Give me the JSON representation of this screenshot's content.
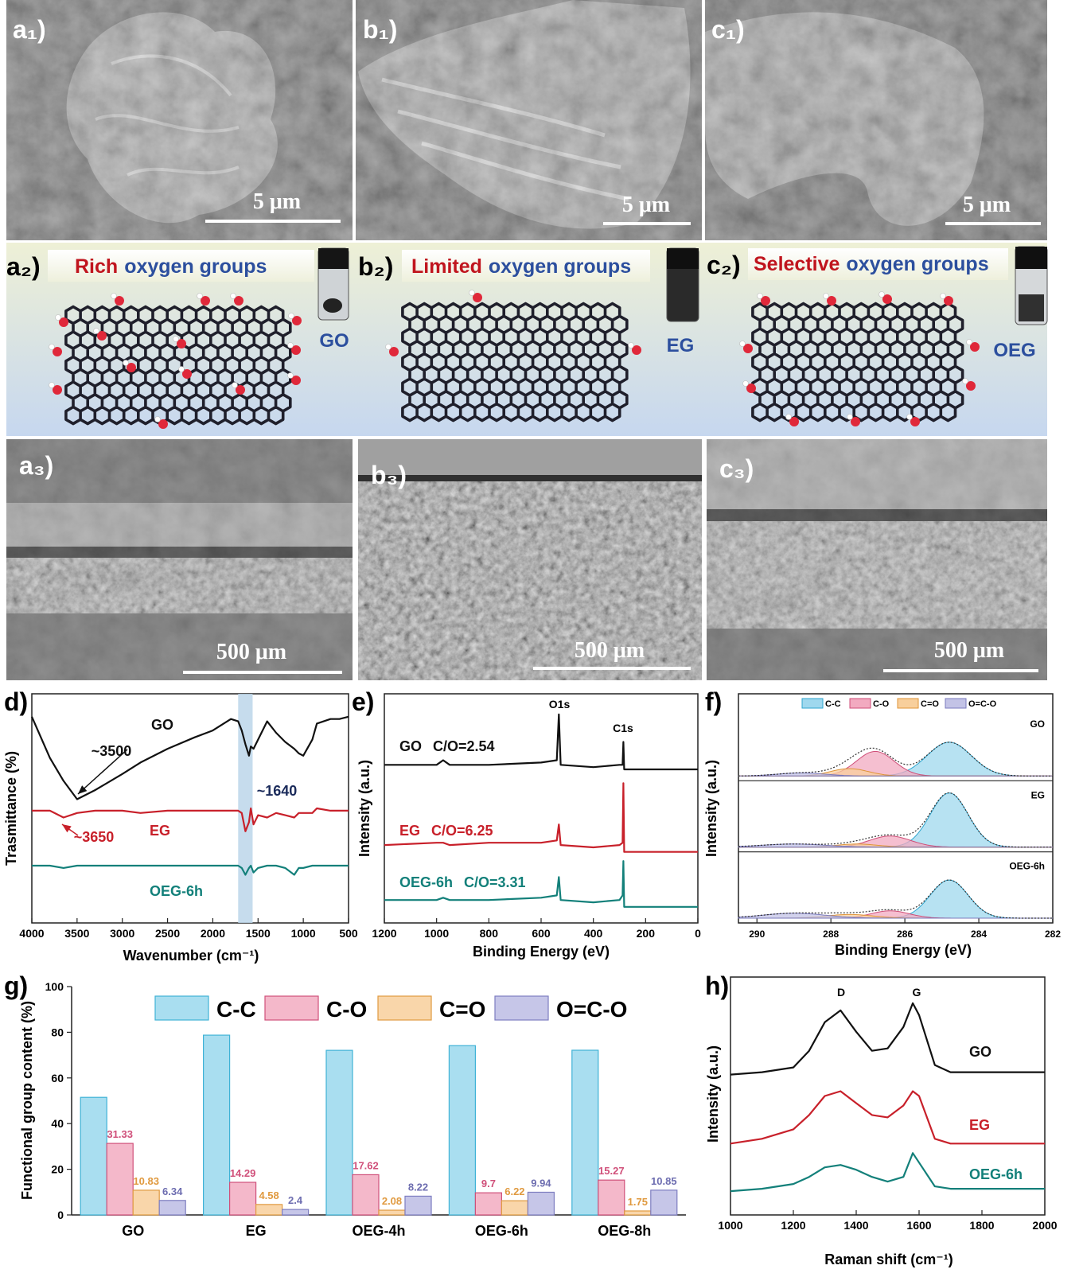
{
  "sem_panels": [
    {
      "label": "a₁)",
      "scale_bar": "5 μm"
    },
    {
      "label": "b₁)",
      "scale_bar": "5 μm"
    },
    {
      "label": "c₁)",
      "scale_bar": "5 μm"
    }
  ],
  "schematics": [
    {
      "label": "a₂)",
      "title_emphasis": "Rich",
      "title_rest": "oxygen groups",
      "vial_label": "GO"
    },
    {
      "label": "b₂)",
      "title_emphasis": "Limited",
      "title_rest": "oxygen groups",
      "vial_label": "EG"
    },
    {
      "label": "c₂)",
      "title_emphasis": "Selective",
      "title_rest": "oxygen groups",
      "vial_label": "OEG"
    }
  ],
  "cross_sections": [
    {
      "label": "a₃)",
      "scale_bar": "500 μm"
    },
    {
      "label": "b₃)",
      "scale_bar": "500 μm"
    },
    {
      "label": "c₃)",
      "scale_bar": "500 μm"
    }
  ],
  "chart_data": [
    {
      "type": "line",
      "label": "d)",
      "xlabel": "Wavenumber (cm⁻¹)",
      "ylabel": "Trasmittance (%)",
      "x": [
        4000,
        3800,
        3650,
        3500,
        3300,
        3000,
        2800,
        2500,
        2200,
        2000,
        1800,
        1720,
        1680,
        1640,
        1600,
        1580,
        1550,
        1500,
        1400,
        1300,
        1200,
        1100,
        1050,
        1000,
        900,
        850,
        700,
        600,
        500
      ],
      "xlim": [
        4000,
        500
      ],
      "xticks": [
        4000,
        3500,
        3000,
        2500,
        2000,
        1500,
        1000,
        500
      ],
      "ylim": [
        0,
        100
      ],
      "band": [
        1720,
        1560
      ],
      "band_color": "#bcd6ea",
      "series": [
        {
          "name": "GO",
          "color": "#111111",
          "values": [
            90,
            72,
            62,
            54,
            58,
            65,
            70,
            76,
            81,
            84,
            89,
            88,
            84,
            78,
            73,
            77,
            76,
            80,
            88,
            83,
            79,
            76,
            74,
            73,
            80,
            87,
            89,
            89,
            90
          ]
        },
        {
          "name": "EG",
          "color": "#c8202a",
          "values": [
            49,
            49,
            46,
            48,
            49,
            49,
            48,
            49,
            49,
            49,
            49,
            49,
            48,
            40,
            44,
            50,
            43,
            47,
            46,
            48,
            47,
            46,
            48,
            48,
            48,
            50,
            49,
            49,
            49
          ]
        },
        {
          "name": "OEG-6h",
          "color": "#13807a",
          "values": [
            25,
            25,
            24,
            25,
            25,
            25,
            25,
            25,
            25,
            25,
            25,
            25,
            24,
            21,
            24,
            25,
            22,
            24,
            25,
            25,
            24,
            21,
            24,
            24,
            25,
            25,
            25,
            25,
            25
          ]
        }
      ],
      "annotations": [
        {
          "text": "~3500",
          "color": "#111111"
        },
        {
          "text": "~1640",
          "color": "#1a2a5a"
        },
        {
          "text": "~3650",
          "color": "#c8202a"
        }
      ]
    },
    {
      "type": "line",
      "label": "e)",
      "xlabel": "Binding Energy (eV)",
      "ylabel": "Intensity (a.u.)",
      "x": [
        1200,
        1000,
        975,
        950,
        800,
        600,
        540,
        532,
        525,
        400,
        300,
        288,
        285,
        282,
        200,
        0
      ],
      "xlim": [
        1200,
        0
      ],
      "xticks": [
        1200,
        1000,
        800,
        600,
        400,
        200,
        0
      ],
      "ylim": [
        0,
        100
      ],
      "peak_labels": [
        "O1s",
        "C1s"
      ],
      "series": [
        {
          "name": "GO",
          "ratio": "C/O=2.54",
          "color": "#111111",
          "values": [
            69,
            69,
            71,
            69,
            69,
            70,
            71,
            91,
            69,
            68,
            69,
            69,
            79,
            67,
            67,
            67
          ]
        },
        {
          "name": "EG",
          "ratio": "C/O=6.25",
          "color": "#c8202a",
          "values": [
            34,
            35,
            35,
            34,
            35,
            35,
            36,
            43,
            34,
            33,
            34,
            35,
            61,
            31,
            31,
            31
          ]
        },
        {
          "name": "OEG-6h",
          "ratio": "C/O=3.31",
          "color": "#13807a",
          "values": [
            10,
            10,
            11,
            10,
            10,
            11,
            12,
            20,
            10,
            9,
            10,
            12,
            27,
            7,
            7,
            7
          ]
        }
      ]
    },
    {
      "type": "area",
      "label": "f)",
      "xlabel": "Binding Energy (eV)",
      "ylabel": "Intensity (a.u.)",
      "xlim": [
        290.5,
        282
      ],
      "xticks": [
        290,
        288,
        286,
        284,
        282
      ],
      "ylim": [
        0,
        100
      ],
      "series": [
        {
          "name": "C-C",
          "color": "#9fd8ee",
          "edge": "#2fa6cf"
        },
        {
          "name": "C-O",
          "color": "#f2aac0",
          "edge": "#cf4e78"
        },
        {
          "name": "C=O",
          "color": "#f8cf9c",
          "edge": "#df9438"
        },
        {
          "name": "O=C-O",
          "color": "#c3c3e6",
          "edge": "#7b7bbd"
        }
      ],
      "samples": [
        {
          "name": "GO",
          "components": [
            {
              "center": 284.8,
              "height": 55,
              "fwhm": 1.4
            },
            {
              "center": 286.8,
              "height": 40,
              "fwhm": 1.2
            },
            {
              "center": 287.5,
              "height": 12,
              "fwhm": 1.2
            },
            {
              "center": 288.8,
              "height": 5,
              "fwhm": 1.5
            }
          ]
        },
        {
          "name": "EG",
          "components": [
            {
              "center": 284.8,
              "height": 88,
              "fwhm": 1.2
            },
            {
              "center": 286.4,
              "height": 18,
              "fwhm": 1.3
            },
            {
              "center": 287.3,
              "height": 5,
              "fwhm": 1.3
            },
            {
              "center": 289,
              "height": 5,
              "fwhm": 2
            }
          ]
        },
        {
          "name": "OEG-6h",
          "components": [
            {
              "center": 284.8,
              "height": 62,
              "fwhm": 1.2
            },
            {
              "center": 286.4,
              "height": 12,
              "fwhm": 1.2
            },
            {
              "center": 287.5,
              "height": 6,
              "fwhm": 1.5
            },
            {
              "center": 289,
              "height": 8,
              "fwhm": 2
            }
          ]
        }
      ]
    },
    {
      "type": "bar",
      "label": "g)",
      "ylabel": "Functional group content (%)",
      "categories": [
        "GO",
        "EG",
        "OEG-4h",
        "OEG-6h",
        "OEG-8h"
      ],
      "ylim": [
        0,
        100
      ],
      "yticks": [
        0,
        20,
        40,
        60,
        80,
        100
      ],
      "series": [
        {
          "name": "C-C",
          "color": "#a9def0",
          "edge": "#3fb2d6",
          "label_color": "#3fb2d6",
          "show_labels": false,
          "values": [
            51.5,
            78.73,
            72.08,
            74.14,
            72.13
          ]
        },
        {
          "name": "C-O",
          "color": "#f4b8ca",
          "edge": "#d0507a",
          "label_color": "#d0507a",
          "show_labels": true,
          "values": [
            31.33,
            14.29,
            17.62,
            9.7,
            15.27
          ]
        },
        {
          "name": "C=O",
          "color": "#f9d6aa",
          "edge": "#e09a40",
          "label_color": "#e09a40",
          "show_labels": true,
          "values": [
            10.83,
            4.58,
            2.08,
            6.22,
            1.75
          ]
        },
        {
          "name": "O=C-O",
          "color": "#c6c6e8",
          "edge": "#7d7dc0",
          "label_color": "#6d6db0",
          "show_labels": true,
          "values": [
            6.34,
            2.4,
            8.22,
            9.94,
            10.85
          ]
        }
      ]
    },
    {
      "type": "line",
      "label": "h)",
      "xlabel": "Raman shift (cm⁻¹)",
      "ylabel": "Intensity (a.u.)",
      "x": [
        1000,
        1100,
        1200,
        1250,
        1300,
        1350,
        1400,
        1450,
        1500,
        1550,
        1580,
        1600,
        1650,
        1700,
        1800,
        1900,
        2000
      ],
      "xlim": [
        1000,
        2000
      ],
      "xticks": [
        1000,
        1200,
        1400,
        1600,
        1800,
        2000
      ],
      "ylim": [
        0,
        100
      ],
      "peak_labels": [
        "D",
        "G"
      ],
      "series": [
        {
          "name": "GO",
          "color": "#111111",
          "values": [
            59,
            60,
            62,
            69,
            81,
            86,
            77,
            69,
            70,
            79,
            89,
            84,
            63,
            60,
            60,
            60,
            60
          ]
        },
        {
          "name": "EG",
          "color": "#c8202a",
          "values": [
            30,
            32,
            36,
            42,
            50,
            52,
            47,
            42,
            41,
            46,
            52,
            50,
            32,
            30,
            30,
            30,
            30
          ]
        },
        {
          "name": "OEG-6h",
          "color": "#13807a",
          "values": [
            10,
            11,
            13,
            16,
            20,
            21,
            19,
            16,
            14,
            16,
            26,
            22,
            12,
            11,
            11,
            11,
            11
          ]
        }
      ]
    }
  ]
}
